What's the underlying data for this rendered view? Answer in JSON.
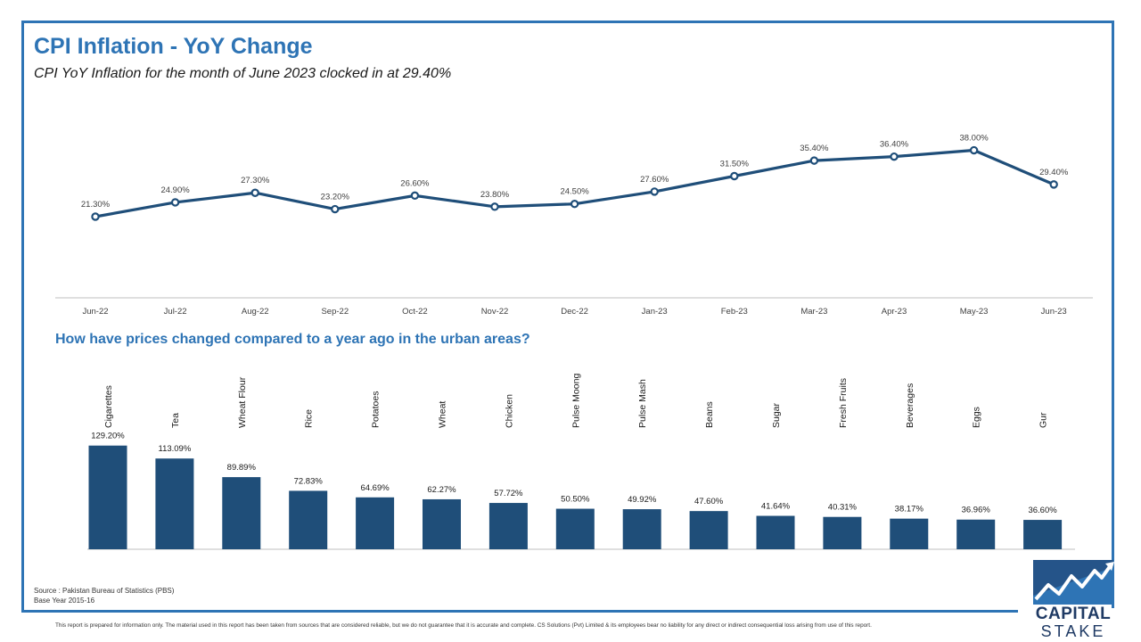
{
  "header": {
    "title": "CPI Inflation - YoY Change",
    "subtitle": "CPI YoY Inflation for the month of June 2023 clocked in at 29.40%"
  },
  "section2": {
    "title": "How have prices changed compared to a year ago in the urban areas?"
  },
  "footer": {
    "source_line1": "Source : Pakistan Bureau of Statistics (PBS)",
    "source_line2": "Base Year 2015-16",
    "disclaimer": "This report is prepared for information only. The material used in this report has been taken from sources that are considered reliable, but we do not guarantee that it is accurate and complete. CS Solutions (Pvt) Limited & its employees bear no liability for any direct or indirect consequential loss arising from use of this report."
  },
  "logo": {
    "word1": "CAPITAL",
    "word2": "STAKE",
    "colors": {
      "dark": "#1f3a64",
      "light": "#2e74b5"
    }
  },
  "colors": {
    "accent": "#2e74b5",
    "series": "#1f4e79"
  },
  "chart_data": [
    {
      "type": "line",
      "title": "CPI Inflation - YoY Change",
      "x": [
        "Jun-22",
        "Jul-22",
        "Aug-22",
        "Sep-22",
        "Oct-22",
        "Nov-22",
        "Dec-22",
        "Jan-23",
        "Feb-23",
        "Mar-23",
        "Apr-23",
        "May-23",
        "Jun-23"
      ],
      "values": [
        21.3,
        24.9,
        27.3,
        23.2,
        26.6,
        23.8,
        24.5,
        27.6,
        31.5,
        35.4,
        36.4,
        38.0,
        29.4
      ],
      "labels": [
        "21.30%",
        "24.90%",
        "27.30%",
        "23.20%",
        "26.60%",
        "23.80%",
        "24.50%",
        "27.60%",
        "31.50%",
        "35.40%",
        "36.40%",
        "38.00%",
        "29.40%"
      ],
      "grid": false,
      "legend": "none"
    },
    {
      "type": "bar",
      "title": "How have prices changed compared to a year ago in the urban areas?",
      "categories": [
        "Cigarettes",
        "Tea",
        "Wheat Flour",
        "Rice",
        "Potatoes",
        "Wheat",
        "Chicken",
        "Pulse Moong",
        "Pulse Mash",
        "Beans",
        "Sugar",
        "Fresh Fruits",
        "Beverages",
        "Eggs",
        "Gur"
      ],
      "values": [
        129.2,
        113.09,
        89.89,
        72.83,
        64.69,
        62.27,
        57.72,
        50.5,
        49.92,
        47.6,
        41.64,
        40.31,
        38.17,
        36.96,
        36.6
      ],
      "labels": [
        "129.20%",
        "113.09%",
        "89.89%",
        "72.83%",
        "64.69%",
        "62.27%",
        "57.72%",
        "50.50%",
        "49.92%",
        "47.60%",
        "41.64%",
        "40.31%",
        "38.17%",
        "36.96%",
        "36.60%"
      ],
      "grid": false,
      "legend": "none"
    }
  ]
}
